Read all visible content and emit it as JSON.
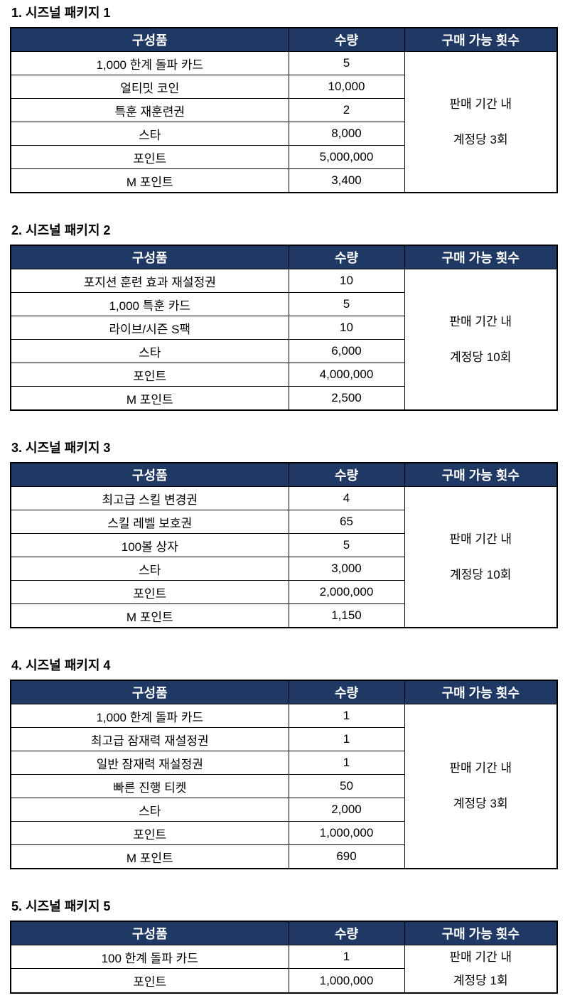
{
  "colors": {
    "header_bg": "#1f3864",
    "header_text": "#ffffff",
    "body_text": "#000000",
    "border": "#000000",
    "page_bg": "#ffffff"
  },
  "sections": [
    {
      "title": "1. 시즈널 패키지 1",
      "headers": {
        "item": "구성품",
        "qty": "수량",
        "limit": "구매 가능 횟수"
      },
      "rows": [
        {
          "item": "1,000 한계 돌파 카드",
          "qty": "5"
        },
        {
          "item": "얼티밋 코인",
          "qty": "10,000"
        },
        {
          "item": "특훈 재훈련권",
          "qty": "2"
        },
        {
          "item": "스타",
          "qty": "8,000"
        },
        {
          "item": "포인트",
          "qty": "5,000,000"
        },
        {
          "item": "M 포인트",
          "qty": "3,400"
        }
      ],
      "note": {
        "line1": "판매 기간 내",
        "line2": "계정당 3회"
      }
    },
    {
      "title": "2. 시즈널 패키지 2",
      "headers": {
        "item": "구성품",
        "qty": "수량",
        "limit": "구매 가능 횟수"
      },
      "rows": [
        {
          "item": "포지션 훈련 효과 재설정권",
          "qty": "10"
        },
        {
          "item": "1,000 특훈 카드",
          "qty": "5"
        },
        {
          "item": "라이브/시즌 S팩",
          "qty": "10"
        },
        {
          "item": "스타",
          "qty": "6,000"
        },
        {
          "item": "포인트",
          "qty": "4,000,000"
        },
        {
          "item": "M 포인트",
          "qty": "2,500"
        }
      ],
      "note": {
        "line1": "판매 기간 내",
        "line2": "계정당 10회"
      }
    },
    {
      "title": "3. 시즈널 패키지 3",
      "headers": {
        "item": "구성품",
        "qty": "수량",
        "limit": "구매 가능 횟수"
      },
      "rows": [
        {
          "item": "최고급 스킬 변경권",
          "qty": "4"
        },
        {
          "item": "스킬 레벨 보호권",
          "qty": "65"
        },
        {
          "item": "100볼 상자",
          "qty": "5"
        },
        {
          "item": "스타",
          "qty": "3,000"
        },
        {
          "item": "포인트",
          "qty": "2,000,000"
        },
        {
          "item": "M 포인트",
          "qty": "1,150"
        }
      ],
      "note": {
        "line1": "판매 기간 내",
        "line2": "계정당 10회"
      }
    },
    {
      "title": "4. 시즈널 패키지 4",
      "headers": {
        "item": "구성품",
        "qty": "수량",
        "limit": "구매 가능 횟수"
      },
      "rows": [
        {
          "item": "1,000 한계 돌파 카드",
          "qty": "1"
        },
        {
          "item": "최고급 잠재력 재설정권",
          "qty": "1"
        },
        {
          "item": "일반 잠재력 재설정권",
          "qty": "1"
        },
        {
          "item": "빠른 진행 티켓",
          "qty": "50"
        },
        {
          "item": "스타",
          "qty": "2,000"
        },
        {
          "item": "포인트",
          "qty": "1,000,000"
        },
        {
          "item": "M 포인트",
          "qty": "690"
        }
      ],
      "note": {
        "line1": "판매 기간 내",
        "line2": "계정당 3회"
      }
    },
    {
      "title": "5. 시즈널 패키지 5",
      "headers": {
        "item": "구성품",
        "qty": "수량",
        "limit": "구매 가능 횟수"
      },
      "rows": [
        {
          "item": "100 한계 돌파 카드",
          "qty": "1"
        },
        {
          "item": "포인트",
          "qty": "1,000,000"
        }
      ],
      "note": {
        "line1": "판매 기간 내",
        "line2": "계정당 1회"
      }
    }
  ]
}
